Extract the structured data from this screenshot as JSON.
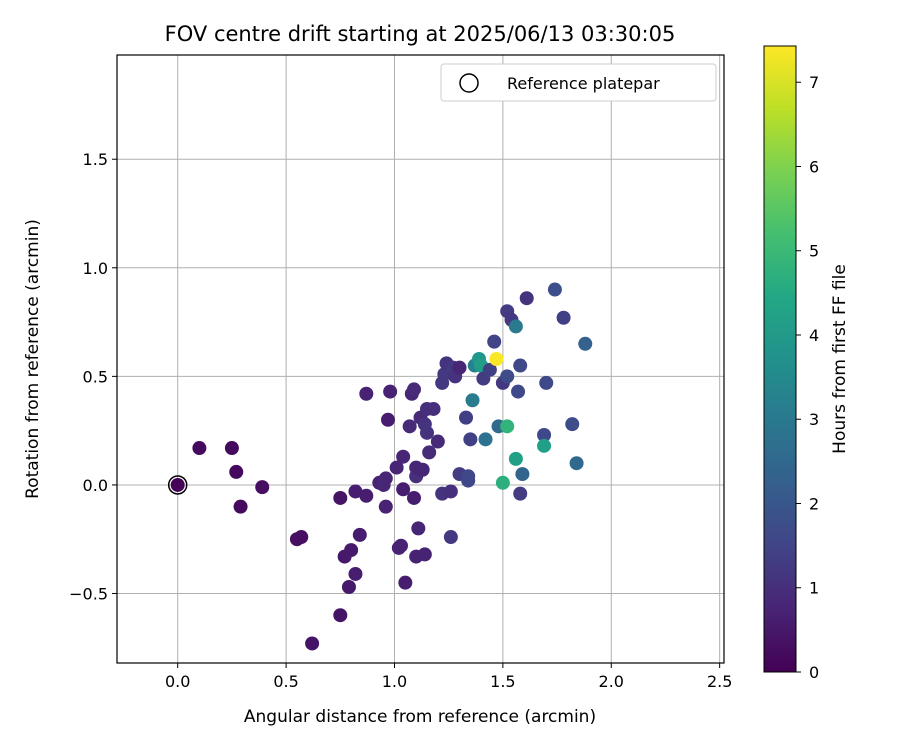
{
  "chart_data": {
    "type": "scatter",
    "title": "FOV centre drift starting at 2025/06/13 03:30:05",
    "xlabel": "Angular distance from reference (arcmin)",
    "ylabel": "Rotation from reference (arcmin)",
    "xlim": [
      -0.28,
      2.52
    ],
    "ylim": [
      -0.82,
      1.98
    ],
    "xticks": [
      0.0,
      0.5,
      1.0,
      1.5,
      2.0,
      2.5
    ],
    "xtick_labels": [
      "0.0",
      "0.5",
      "1.0",
      "1.5",
      "2.0",
      "2.5"
    ],
    "yticks": [
      -0.5,
      0.0,
      0.5,
      1.0,
      1.5
    ],
    "ytick_labels": [
      "−0.5",
      "0.0",
      "0.5",
      "1.0",
      "1.5"
    ],
    "grid": true,
    "legend": {
      "placement": "top-right",
      "entries": [
        "Reference platepar"
      ]
    },
    "colorbar": {
      "label": "Hours from first FF file",
      "colormap": "viridis",
      "range": [
        0,
        7.43
      ],
      "ticks": [
        0,
        1,
        2,
        3,
        4,
        5,
        6,
        7
      ],
      "tick_labels": [
        "0",
        "1",
        "2",
        "3",
        "4",
        "5",
        "6",
        "7"
      ]
    },
    "reference_point": {
      "x": 0.0,
      "y": 0.0
    },
    "points": [
      {
        "x": 0.0,
        "y": 0.0,
        "h": 0.05
      },
      {
        "x": 0.1,
        "y": 0.17,
        "h": 0.2
      },
      {
        "x": 0.25,
        "y": 0.17,
        "h": 0.2
      },
      {
        "x": 0.27,
        "y": 0.06,
        "h": 0.2
      },
      {
        "x": 0.29,
        "y": -0.1,
        "h": 0.2
      },
      {
        "x": 0.39,
        "y": -0.01,
        "h": 0.3
      },
      {
        "x": 0.55,
        "y": -0.25,
        "h": 0.3
      },
      {
        "x": 0.57,
        "y": -0.24,
        "h": 0.3
      },
      {
        "x": 0.62,
        "y": -0.73,
        "h": 0.4
      },
      {
        "x": 0.75,
        "y": -0.06,
        "h": 0.4
      },
      {
        "x": 0.75,
        "y": -0.6,
        "h": 0.4
      },
      {
        "x": 0.77,
        "y": -0.33,
        "h": 0.5
      },
      {
        "x": 0.79,
        "y": -0.47,
        "h": 0.5
      },
      {
        "x": 0.8,
        "y": -0.3,
        "h": 0.5
      },
      {
        "x": 0.82,
        "y": -0.03,
        "h": 0.6
      },
      {
        "x": 0.82,
        "y": -0.41,
        "h": 0.6
      },
      {
        "x": 0.84,
        "y": -0.23,
        "h": 0.6
      },
      {
        "x": 0.87,
        "y": 0.42,
        "h": 0.7
      },
      {
        "x": 0.87,
        "y": -0.05,
        "h": 0.6
      },
      {
        "x": 0.93,
        "y": 0.01,
        "h": 0.7
      },
      {
        "x": 0.95,
        "y": 0.0,
        "h": 0.8
      },
      {
        "x": 0.96,
        "y": 0.03,
        "h": 0.8
      },
      {
        "x": 0.96,
        "y": -0.1,
        "h": 0.7
      },
      {
        "x": 0.97,
        "y": 0.3,
        "h": 0.6
      },
      {
        "x": 0.98,
        "y": 0.43,
        "h": 0.7
      },
      {
        "x": 1.01,
        "y": 0.08,
        "h": 0.8
      },
      {
        "x": 1.02,
        "y": -0.29,
        "h": 0.7
      },
      {
        "x": 1.03,
        "y": -0.28,
        "h": 0.7
      },
      {
        "x": 1.04,
        "y": -0.02,
        "h": 0.6
      },
      {
        "x": 1.04,
        "y": 0.13,
        "h": 0.8
      },
      {
        "x": 1.05,
        "y": -0.45,
        "h": 0.6
      },
      {
        "x": 1.07,
        "y": 0.27,
        "h": 0.9
      },
      {
        "x": 1.08,
        "y": 0.42,
        "h": 0.8
      },
      {
        "x": 1.09,
        "y": -0.06,
        "h": 0.6
      },
      {
        "x": 1.09,
        "y": 0.44,
        "h": 0.9
      },
      {
        "x": 1.1,
        "y": 0.04,
        "h": 1.0
      },
      {
        "x": 1.1,
        "y": 0.08,
        "h": 0.8
      },
      {
        "x": 1.1,
        "y": -0.33,
        "h": 0.7
      },
      {
        "x": 1.11,
        "y": -0.2,
        "h": 0.8
      },
      {
        "x": 1.12,
        "y": 0.31,
        "h": 0.9
      },
      {
        "x": 1.13,
        "y": 0.07,
        "h": 0.8
      },
      {
        "x": 1.14,
        "y": 0.28,
        "h": 1.1
      },
      {
        "x": 1.14,
        "y": -0.32,
        "h": 0.7
      },
      {
        "x": 1.15,
        "y": 0.24,
        "h": 1.1
      },
      {
        "x": 1.15,
        "y": 0.35,
        "h": 1.0
      },
      {
        "x": 1.16,
        "y": 0.15,
        "h": 0.9
      },
      {
        "x": 1.18,
        "y": 0.35,
        "h": 1.0
      },
      {
        "x": 1.2,
        "y": 0.2,
        "h": 0.9
      },
      {
        "x": 1.22,
        "y": -0.04,
        "h": 1.1
      },
      {
        "x": 1.22,
        "y": 0.47,
        "h": 1.2
      },
      {
        "x": 1.23,
        "y": 0.51,
        "h": 1.2
      },
      {
        "x": 1.24,
        "y": 0.56,
        "h": 1.1
      },
      {
        "x": 1.26,
        "y": -0.03,
        "h": 1.0
      },
      {
        "x": 1.26,
        "y": -0.24,
        "h": 1.2
      },
      {
        "x": 1.27,
        "y": 0.54,
        "h": 1.2
      },
      {
        "x": 1.28,
        "y": 0.5,
        "h": 1.1
      },
      {
        "x": 1.3,
        "y": 0.05,
        "h": 1.3
      },
      {
        "x": 1.3,
        "y": 0.54,
        "h": 0.8
      },
      {
        "x": 1.33,
        "y": 0.31,
        "h": 1.4
      },
      {
        "x": 1.34,
        "y": 0.02,
        "h": 1.6
      },
      {
        "x": 1.34,
        "y": 0.04,
        "h": 1.6
      },
      {
        "x": 1.35,
        "y": 0.21,
        "h": 1.4
      },
      {
        "x": 1.36,
        "y": 0.39,
        "h": 3.1
      },
      {
        "x": 1.37,
        "y": 0.55,
        "h": 3.3
      },
      {
        "x": 1.39,
        "y": 0.58,
        "h": 3.9
      },
      {
        "x": 1.4,
        "y": 0.55,
        "h": 4.1
      },
      {
        "x": 1.41,
        "y": 0.49,
        "h": 1.3
      },
      {
        "x": 1.42,
        "y": 0.21,
        "h": 2.8
      },
      {
        "x": 1.44,
        "y": 0.53,
        "h": 1.4
      },
      {
        "x": 1.46,
        "y": 0.66,
        "h": 1.5
      },
      {
        "x": 1.47,
        "y": 0.58,
        "h": 7.4
      },
      {
        "x": 1.48,
        "y": 0.27,
        "h": 2.6
      },
      {
        "x": 1.5,
        "y": 0.01,
        "h": 4.7
      },
      {
        "x": 1.5,
        "y": 0.47,
        "h": 1.2
      },
      {
        "x": 1.52,
        "y": 0.27,
        "h": 4.8
      },
      {
        "x": 1.52,
        "y": 0.8,
        "h": 1.3
      },
      {
        "x": 1.52,
        "y": 0.5,
        "h": 1.7
      },
      {
        "x": 1.54,
        "y": 0.76,
        "h": 1.2
      },
      {
        "x": 1.56,
        "y": 0.73,
        "h": 3.0
      },
      {
        "x": 1.56,
        "y": 0.12,
        "h": 4.2
      },
      {
        "x": 1.57,
        "y": 0.43,
        "h": 1.6
      },
      {
        "x": 1.58,
        "y": -0.04,
        "h": 1.3
      },
      {
        "x": 1.58,
        "y": 0.55,
        "h": 1.6
      },
      {
        "x": 1.59,
        "y": 0.05,
        "h": 2.4
      },
      {
        "x": 1.61,
        "y": 0.86,
        "h": 1.1
      },
      {
        "x": 1.69,
        "y": 0.23,
        "h": 1.6
      },
      {
        "x": 1.69,
        "y": 0.18,
        "h": 4.2
      },
      {
        "x": 1.7,
        "y": 0.47,
        "h": 1.6
      },
      {
        "x": 1.74,
        "y": 0.9,
        "h": 1.8
      },
      {
        "x": 1.78,
        "y": 0.77,
        "h": 1.4
      },
      {
        "x": 1.82,
        "y": 0.28,
        "h": 1.7
      },
      {
        "x": 1.84,
        "y": 0.1,
        "h": 2.5
      },
      {
        "x": 1.88,
        "y": 0.65,
        "h": 2.3
      }
    ]
  }
}
